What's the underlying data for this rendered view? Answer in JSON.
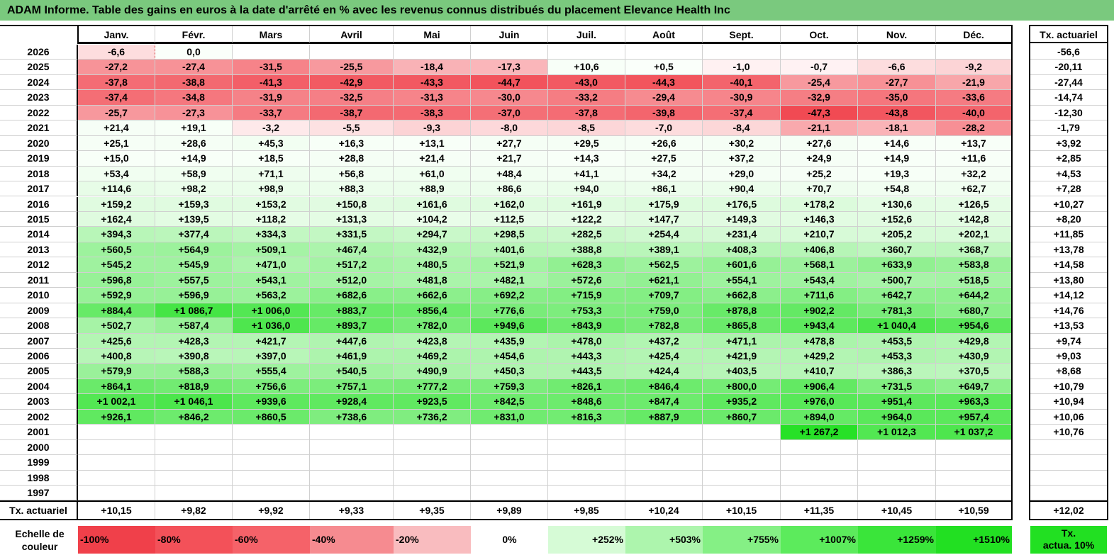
{
  "title": "ADAM Informe. Table des gains en euros à la date d'arrêté en % avec les revenus connus distribués du placement Elevance Health Inc",
  "months": [
    "Janv.",
    "Févr.",
    "Mars",
    "Avril",
    "Mai",
    "Juin",
    "Juil.",
    "Août",
    "Sept.",
    "Oct.",
    "Nov.",
    "Déc."
  ],
  "tx_header": "Tx. actuariel",
  "rows": [
    {
      "year": "2026",
      "values": [
        "-6,6",
        "0,0",
        "",
        "",
        "",
        "",
        "",
        "",
        "",
        "",
        "",
        ""
      ],
      "tx": "-56,6"
    },
    {
      "year": "2025",
      "values": [
        "-27,2",
        "-27,4",
        "-31,5",
        "-25,5",
        "-18,4",
        "-17,3",
        "+10,6",
        "+0,5",
        "-1,0",
        "-0,7",
        "-6,6",
        "-9,2"
      ],
      "tx": "-20,11"
    },
    {
      "year": "2024",
      "values": [
        "-37,8",
        "-38,8",
        "-41,3",
        "-42,9",
        "-43,3",
        "-44,7",
        "-43,0",
        "-44,3",
        "-40,1",
        "-25,4",
        "-27,7",
        "-21,9"
      ],
      "tx": "-27,44"
    },
    {
      "year": "2023",
      "values": [
        "-37,4",
        "-34,8",
        "-31,9",
        "-32,5",
        "-31,3",
        "-30,0",
        "-33,2",
        "-29,4",
        "-30,9",
        "-32,9",
        "-35,0",
        "-33,6"
      ],
      "tx": "-14,74"
    },
    {
      "year": "2022",
      "values": [
        "-25,7",
        "-27,3",
        "-33,7",
        "-38,7",
        "-38,3",
        "-37,0",
        "-37,8",
        "-39,8",
        "-37,4",
        "-47,3",
        "-43,8",
        "-40,0"
      ],
      "tx": "-12,30"
    },
    {
      "year": "2021",
      "values": [
        "+21,4",
        "+19,1",
        "-3,2",
        "-5,5",
        "-9,3",
        "-8,0",
        "-8,5",
        "-7,0",
        "-8,4",
        "-21,1",
        "-18,1",
        "-28,2"
      ],
      "tx": "-1,79"
    },
    {
      "year": "2020",
      "values": [
        "+25,1",
        "+28,6",
        "+45,3",
        "+16,3",
        "+13,1",
        "+27,7",
        "+29,5",
        "+26,6",
        "+30,2",
        "+27,6",
        "+14,6",
        "+13,7"
      ],
      "tx": "+3,92"
    },
    {
      "year": "2019",
      "values": [
        "+15,0",
        "+14,9",
        "+18,5",
        "+28,8",
        "+21,4",
        "+21,7",
        "+14,3",
        "+27,5",
        "+37,2",
        "+24,9",
        "+14,9",
        "+11,6"
      ],
      "tx": "+2,85"
    },
    {
      "year": "2018",
      "values": [
        "+53,4",
        "+58,9",
        "+71,1",
        "+56,8",
        "+61,0",
        "+48,4",
        "+41,1",
        "+34,2",
        "+29,0",
        "+25,2",
        "+19,3",
        "+32,2"
      ],
      "tx": "+4,53"
    },
    {
      "year": "2017",
      "values": [
        "+114,6",
        "+98,2",
        "+98,9",
        "+88,3",
        "+88,9",
        "+86,6",
        "+94,0",
        "+86,1",
        "+90,4",
        "+70,7",
        "+54,8",
        "+62,7"
      ],
      "tx": "+7,28"
    },
    {
      "year": "2016",
      "values": [
        "+159,2",
        "+159,3",
        "+153,2",
        "+150,8",
        "+161,6",
        "+162,0",
        "+161,9",
        "+175,9",
        "+176,5",
        "+178,2",
        "+130,6",
        "+126,5"
      ],
      "tx": "+10,27"
    },
    {
      "year": "2015",
      "values": [
        "+162,4",
        "+139,5",
        "+118,2",
        "+131,3",
        "+104,2",
        "+112,5",
        "+122,2",
        "+147,7",
        "+149,3",
        "+146,3",
        "+152,6",
        "+142,8"
      ],
      "tx": "+8,20"
    },
    {
      "year": "2014",
      "values": [
        "+394,3",
        "+377,4",
        "+334,3",
        "+331,5",
        "+294,7",
        "+298,5",
        "+282,5",
        "+254,4",
        "+231,4",
        "+210,7",
        "+205,2",
        "+202,1"
      ],
      "tx": "+11,85"
    },
    {
      "year": "2013",
      "values": [
        "+560,5",
        "+564,9",
        "+509,1",
        "+467,4",
        "+432,9",
        "+401,6",
        "+388,8",
        "+389,1",
        "+408,3",
        "+406,8",
        "+360,7",
        "+368,7"
      ],
      "tx": "+13,78"
    },
    {
      "year": "2012",
      "values": [
        "+545,2",
        "+545,9",
        "+471,0",
        "+517,2",
        "+480,5",
        "+521,9",
        "+628,3",
        "+562,5",
        "+601,6",
        "+568,1",
        "+633,9",
        "+583,8"
      ],
      "tx": "+14,58"
    },
    {
      "year": "2011",
      "values": [
        "+596,8",
        "+557,5",
        "+543,1",
        "+512,0",
        "+481,8",
        "+482,1",
        "+572,6",
        "+621,1",
        "+554,1",
        "+543,4",
        "+500,7",
        "+518,5"
      ],
      "tx": "+13,80"
    },
    {
      "year": "2010",
      "values": [
        "+592,9",
        "+596,9",
        "+563,2",
        "+682,6",
        "+662,6",
        "+692,2",
        "+715,9",
        "+709,7",
        "+662,8",
        "+711,6",
        "+642,7",
        "+644,2"
      ],
      "tx": "+14,12"
    },
    {
      "year": "2009",
      "values": [
        "+884,4",
        "+1 086,7",
        "+1 006,0",
        "+883,7",
        "+856,4",
        "+776,6",
        "+753,3",
        "+759,0",
        "+878,8",
        "+902,2",
        "+781,3",
        "+680,7"
      ],
      "tx": "+14,76"
    },
    {
      "year": "2008",
      "values": [
        "+502,7",
        "+587,4",
        "+1 036,0",
        "+893,7",
        "+782,0",
        "+949,6",
        "+843,9",
        "+782,8",
        "+865,8",
        "+943,4",
        "+1 040,4",
        "+954,6"
      ],
      "tx": "+13,53"
    },
    {
      "year": "2007",
      "values": [
        "+425,6",
        "+428,3",
        "+421,7",
        "+447,6",
        "+423,8",
        "+435,9",
        "+478,0",
        "+437,2",
        "+471,1",
        "+478,8",
        "+453,5",
        "+429,8"
      ],
      "tx": "+9,74"
    },
    {
      "year": "2006",
      "values": [
        "+400,8",
        "+390,8",
        "+397,0",
        "+461,9",
        "+469,2",
        "+454,6",
        "+443,3",
        "+425,4",
        "+421,9",
        "+429,2",
        "+453,3",
        "+430,9"
      ],
      "tx": "+9,03"
    },
    {
      "year": "2005",
      "values": [
        "+579,9",
        "+588,3",
        "+555,4",
        "+540,5",
        "+490,9",
        "+450,3",
        "+443,5",
        "+424,4",
        "+403,5",
        "+410,7",
        "+386,3",
        "+370,5"
      ],
      "tx": "+8,68"
    },
    {
      "year": "2004",
      "values": [
        "+864,1",
        "+818,9",
        "+756,6",
        "+757,1",
        "+777,2",
        "+759,3",
        "+826,1",
        "+846,4",
        "+800,0",
        "+906,4",
        "+731,5",
        "+649,7"
      ],
      "tx": "+10,79"
    },
    {
      "year": "2003",
      "values": [
        "+1 002,1",
        "+1 046,1",
        "+939,6",
        "+928,4",
        "+923,5",
        "+842,5",
        "+848,6",
        "+847,4",
        "+935,2",
        "+976,0",
        "+951,4",
        "+963,3"
      ],
      "tx": "+10,94"
    },
    {
      "year": "2002",
      "values": [
        "+926,1",
        "+846,2",
        "+860,5",
        "+738,6",
        "+736,2",
        "+831,0",
        "+816,3",
        "+887,9",
        "+860,7",
        "+894,0",
        "+964,0",
        "+957,4"
      ],
      "tx": "+10,06"
    },
    {
      "year": "2001",
      "values": [
        "",
        "",
        "",
        "",
        "",
        "",
        "",
        "",
        "",
        "+1 267,2",
        "+1 012,3",
        "+1 037,2"
      ],
      "tx": "+10,76"
    },
    {
      "year": "2000",
      "values": [
        "",
        "",
        "",
        "",
        "",
        "",
        "",
        "",
        "",
        "",
        "",
        ""
      ],
      "tx": ""
    },
    {
      "year": "1999",
      "values": [
        "",
        "",
        "",
        "",
        "",
        "",
        "",
        "",
        "",
        "",
        "",
        ""
      ],
      "tx": ""
    },
    {
      "year": "1998",
      "values": [
        "",
        "",
        "",
        "",
        "",
        "",
        "",
        "",
        "",
        "",
        "",
        ""
      ],
      "tx": ""
    },
    {
      "year": "1997",
      "values": [
        "",
        "",
        "",
        "",
        "",
        "",
        "",
        "",
        "",
        "",
        "",
        ""
      ],
      "tx": ""
    }
  ],
  "footer": {
    "label": "Tx. actuariel",
    "values": [
      "+10,15",
      "+9,82",
      "+9,92",
      "+9,33",
      "+9,35",
      "+9,89",
      "+9,85",
      "+10,24",
      "+10,15",
      "+11,35",
      "+10,45",
      "+10,59"
    ],
    "tx": "+12,02"
  },
  "scale": {
    "label_line1": "Echelle de",
    "label_line2": "couleur",
    "cells": [
      {
        "text": "-100%",
        "color": "#f0404a"
      },
      {
        "text": "-80%",
        "color": "#f35159"
      },
      {
        "text": "-60%",
        "color": "#f56269"
      },
      {
        "text": "-40%",
        "color": "#f68b90"
      },
      {
        "text": "-20%",
        "color": "#f9bcbf"
      },
      {
        "text": "0%",
        "color": "#ffffff"
      },
      {
        "text": "+252%",
        "color": "#d6fbd6"
      },
      {
        "text": "+503%",
        "color": "#adf5ad"
      },
      {
        "text": "+755%",
        "color": "#85f085"
      },
      {
        "text": "+1007%",
        "color": "#5ceb5c"
      },
      {
        "text": "+1259%",
        "color": "#3ae53a"
      },
      {
        "text": "+1510%",
        "color": "#22e022"
      }
    ],
    "tx_line1": "Tx.",
    "tx_line2": "actua. 10%",
    "tx_color": "#22e022"
  },
  "colors": {
    "title_bg": "#7ac97e"
  }
}
